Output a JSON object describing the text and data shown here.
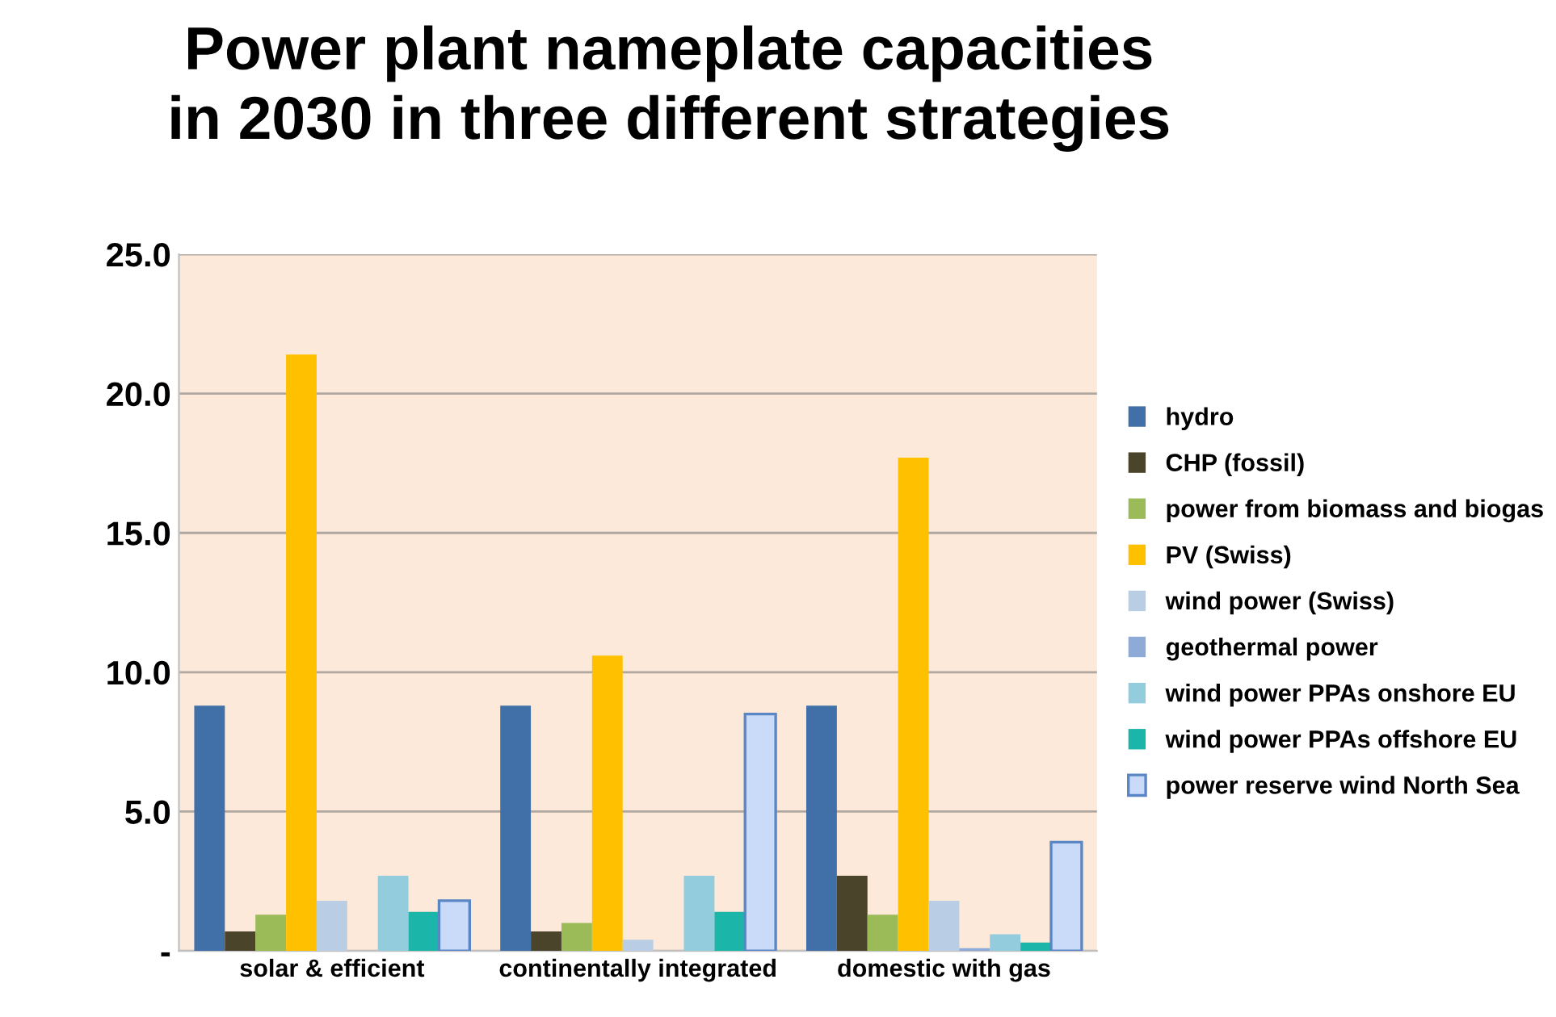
{
  "chart_data": {
    "type": "bar",
    "title": "Power plant nameplate capacities\nin 2030 in three different strategies",
    "categories": [
      "solar & efficient",
      "continentally integrated",
      "domestic with gas"
    ],
    "series": [
      {
        "name": "hydro",
        "color": "#4170a8",
        "values": [
          8.8,
          8.8,
          8.8
        ]
      },
      {
        "name": "CHP (fossil)",
        "color": "#4a452a",
        "values": [
          0.7,
          0.7,
          2.7
        ]
      },
      {
        "name": "power from biomass and biogas",
        "color": "#9bbb59",
        "values": [
          1.3,
          1.0,
          1.3
        ]
      },
      {
        "name": "PV (Swiss)",
        "color": "#ffc000",
        "values": [
          21.4,
          10.6,
          17.7
        ]
      },
      {
        "name": "wind power (Swiss)",
        "color": "#b9cde5",
        "values": [
          1.8,
          0.4,
          1.8
        ]
      },
      {
        "name": "geothermal power",
        "color": "#8eaad6",
        "values": [
          0,
          0,
          0.1
        ]
      },
      {
        "name": "wind power PPAs onshore EU",
        "color": "#93cddd",
        "values": [
          2.7,
          2.7,
          0.6
        ]
      },
      {
        "name": "wind power PPAs offshore EU",
        "color": "#1cb5a9",
        "values": [
          1.4,
          1.4,
          0.3
        ]
      },
      {
        "name": "power reserve wind North Sea",
        "color": "#c9dbf8",
        "values": [
          1.8,
          8.5,
          3.9
        ]
      }
    ],
    "ylim": [
      0,
      25
    ],
    "yticks": [
      {
        "value": 0,
        "label": "-"
      },
      {
        "value": 5,
        "label": "5.0"
      },
      {
        "value": 10,
        "label": "10.0"
      },
      {
        "value": 15,
        "label": "15.0"
      },
      {
        "value": 20,
        "label": "20.0"
      },
      {
        "value": 25,
        "label": "25.0"
      }
    ],
    "grid": "y",
    "legend": "right"
  }
}
